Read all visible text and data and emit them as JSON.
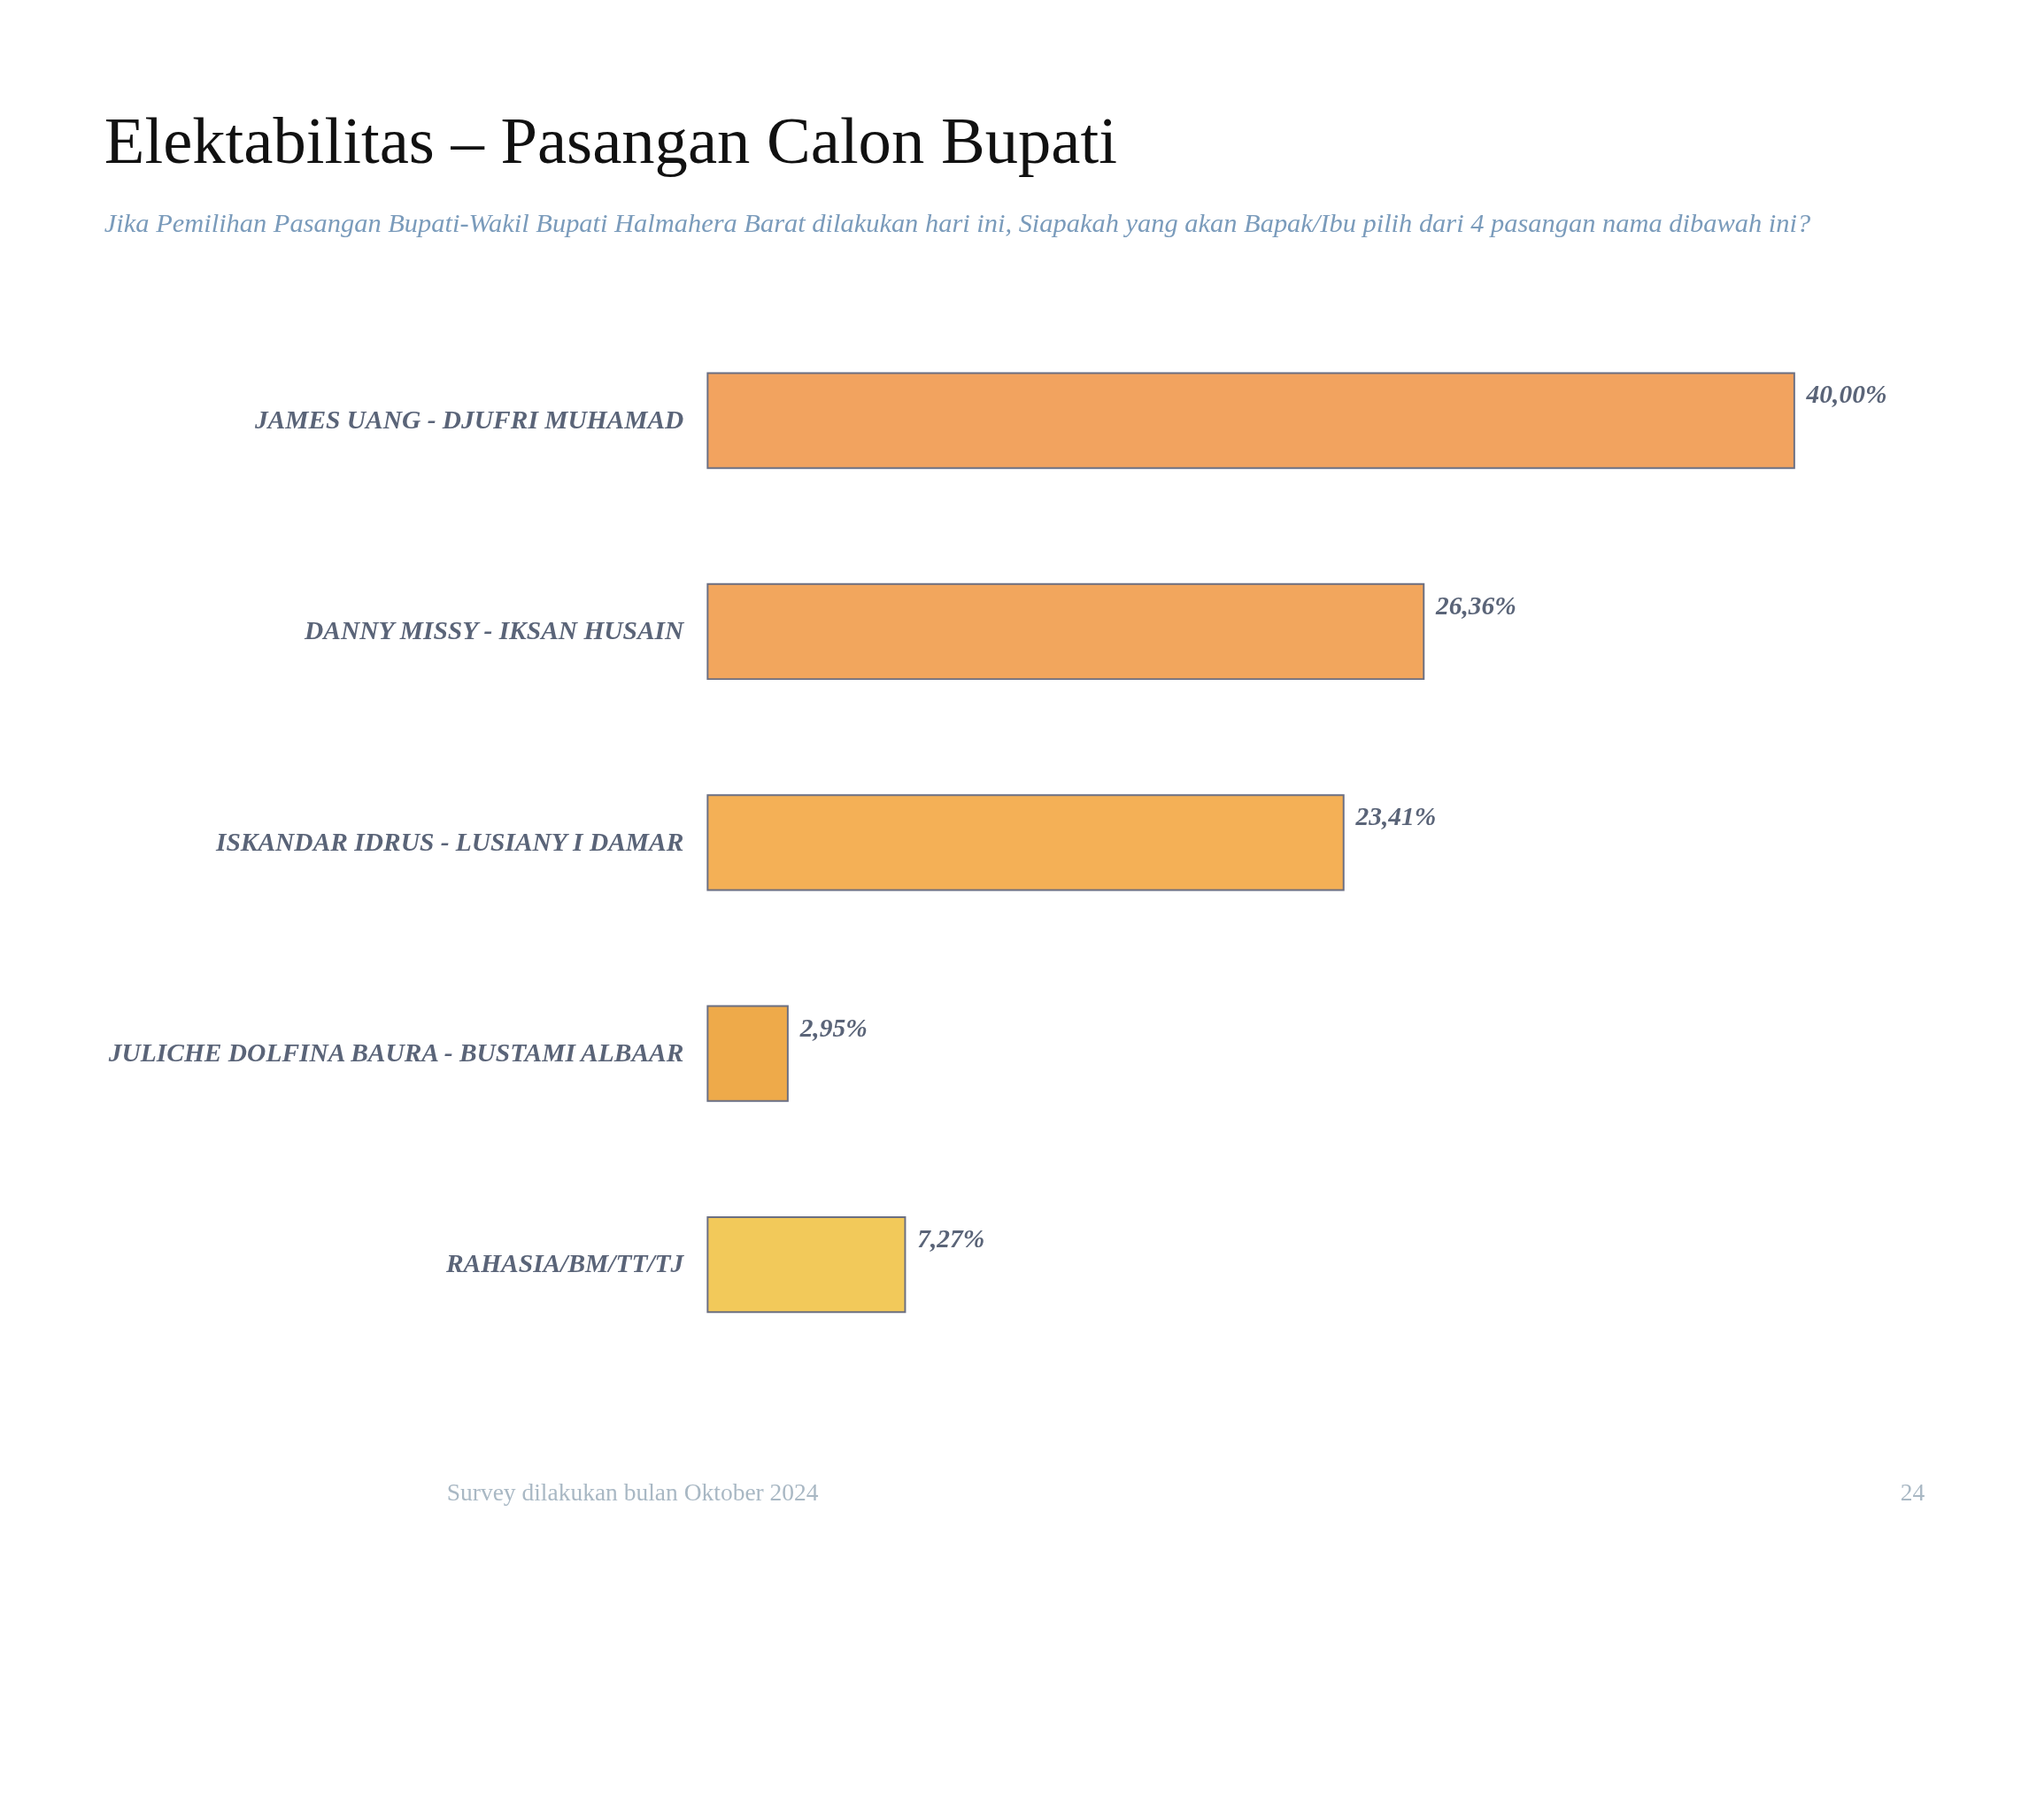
{
  "chart_data": {
    "type": "bar",
    "orientation": "horizontal",
    "title": "Elektabilitas – Pasangan Calon Bupati",
    "subtitle": "Jika Pemilihan Pasangan Bupati-Wakil Bupati Halmahera Barat dilakukan hari ini, Siapakah yang akan Bapak/Ibu pilih dari 4 pasangan nama dibawah ini?",
    "categories": [
      "JAMES UANG - DJUFRI MUHAMAD",
      "DANNY MISSY - IKSAN HUSAIN",
      "ISKANDAR IDRUS - LUSIANY I DAMAR",
      "JULICHE DOLFINA BAURA - BUSTAMI ALBAAR",
      "RAHASIA/BM/TT/TJ"
    ],
    "values": [
      40.0,
      26.36,
      23.41,
      2.95,
      7.27
    ],
    "value_labels": [
      "40,00%",
      "26,36%",
      "23,41%",
      "2,95%",
      "7,27%"
    ],
    "colors": [
      "#f2a35f",
      "#f2a65d",
      "#f4b056",
      "#eeaa4a",
      "#f2c95a"
    ],
    "annotations": [
      "Survey dilakukan bulan Oktober 2024",
      "24"
    ]
  }
}
